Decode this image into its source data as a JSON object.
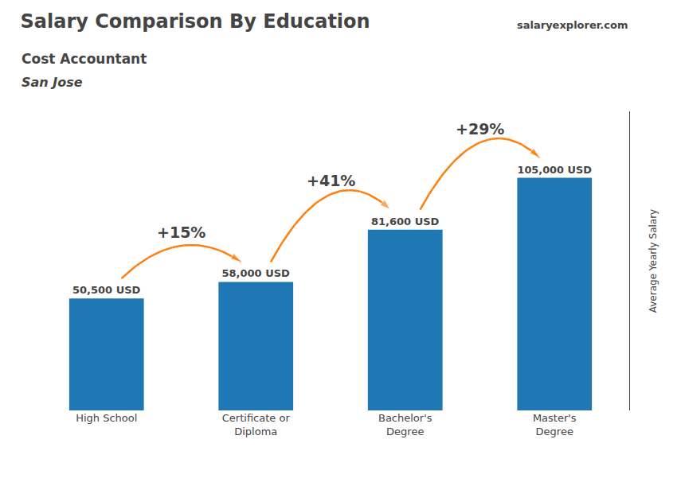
{
  "chart_data": {
    "type": "bar",
    "title": "Salary Comparison By Education",
    "subtitle": "Cost Accountant",
    "annotations": [
      "San Jose",
      "salaryexplorer.com"
    ],
    "ylabel": "Average Yearly Salary",
    "categories": [
      "High School",
      "Certificate or\nDiploma",
      "Bachelor's\nDegree",
      "Master's\nDegree"
    ],
    "values": [
      50500,
      58000,
      81600,
      105000
    ],
    "value_labels": [
      "50,500 USD",
      "58,000 USD",
      "81,600 USD",
      "105,000 USD"
    ],
    "data_labels": true,
    "change_labels": [
      "+15%",
      "+41%",
      "+29%"
    ],
    "ylim": [
      0,
      135000
    ],
    "yticks": [],
    "grid": false,
    "tick_labels": "x"
  }
}
